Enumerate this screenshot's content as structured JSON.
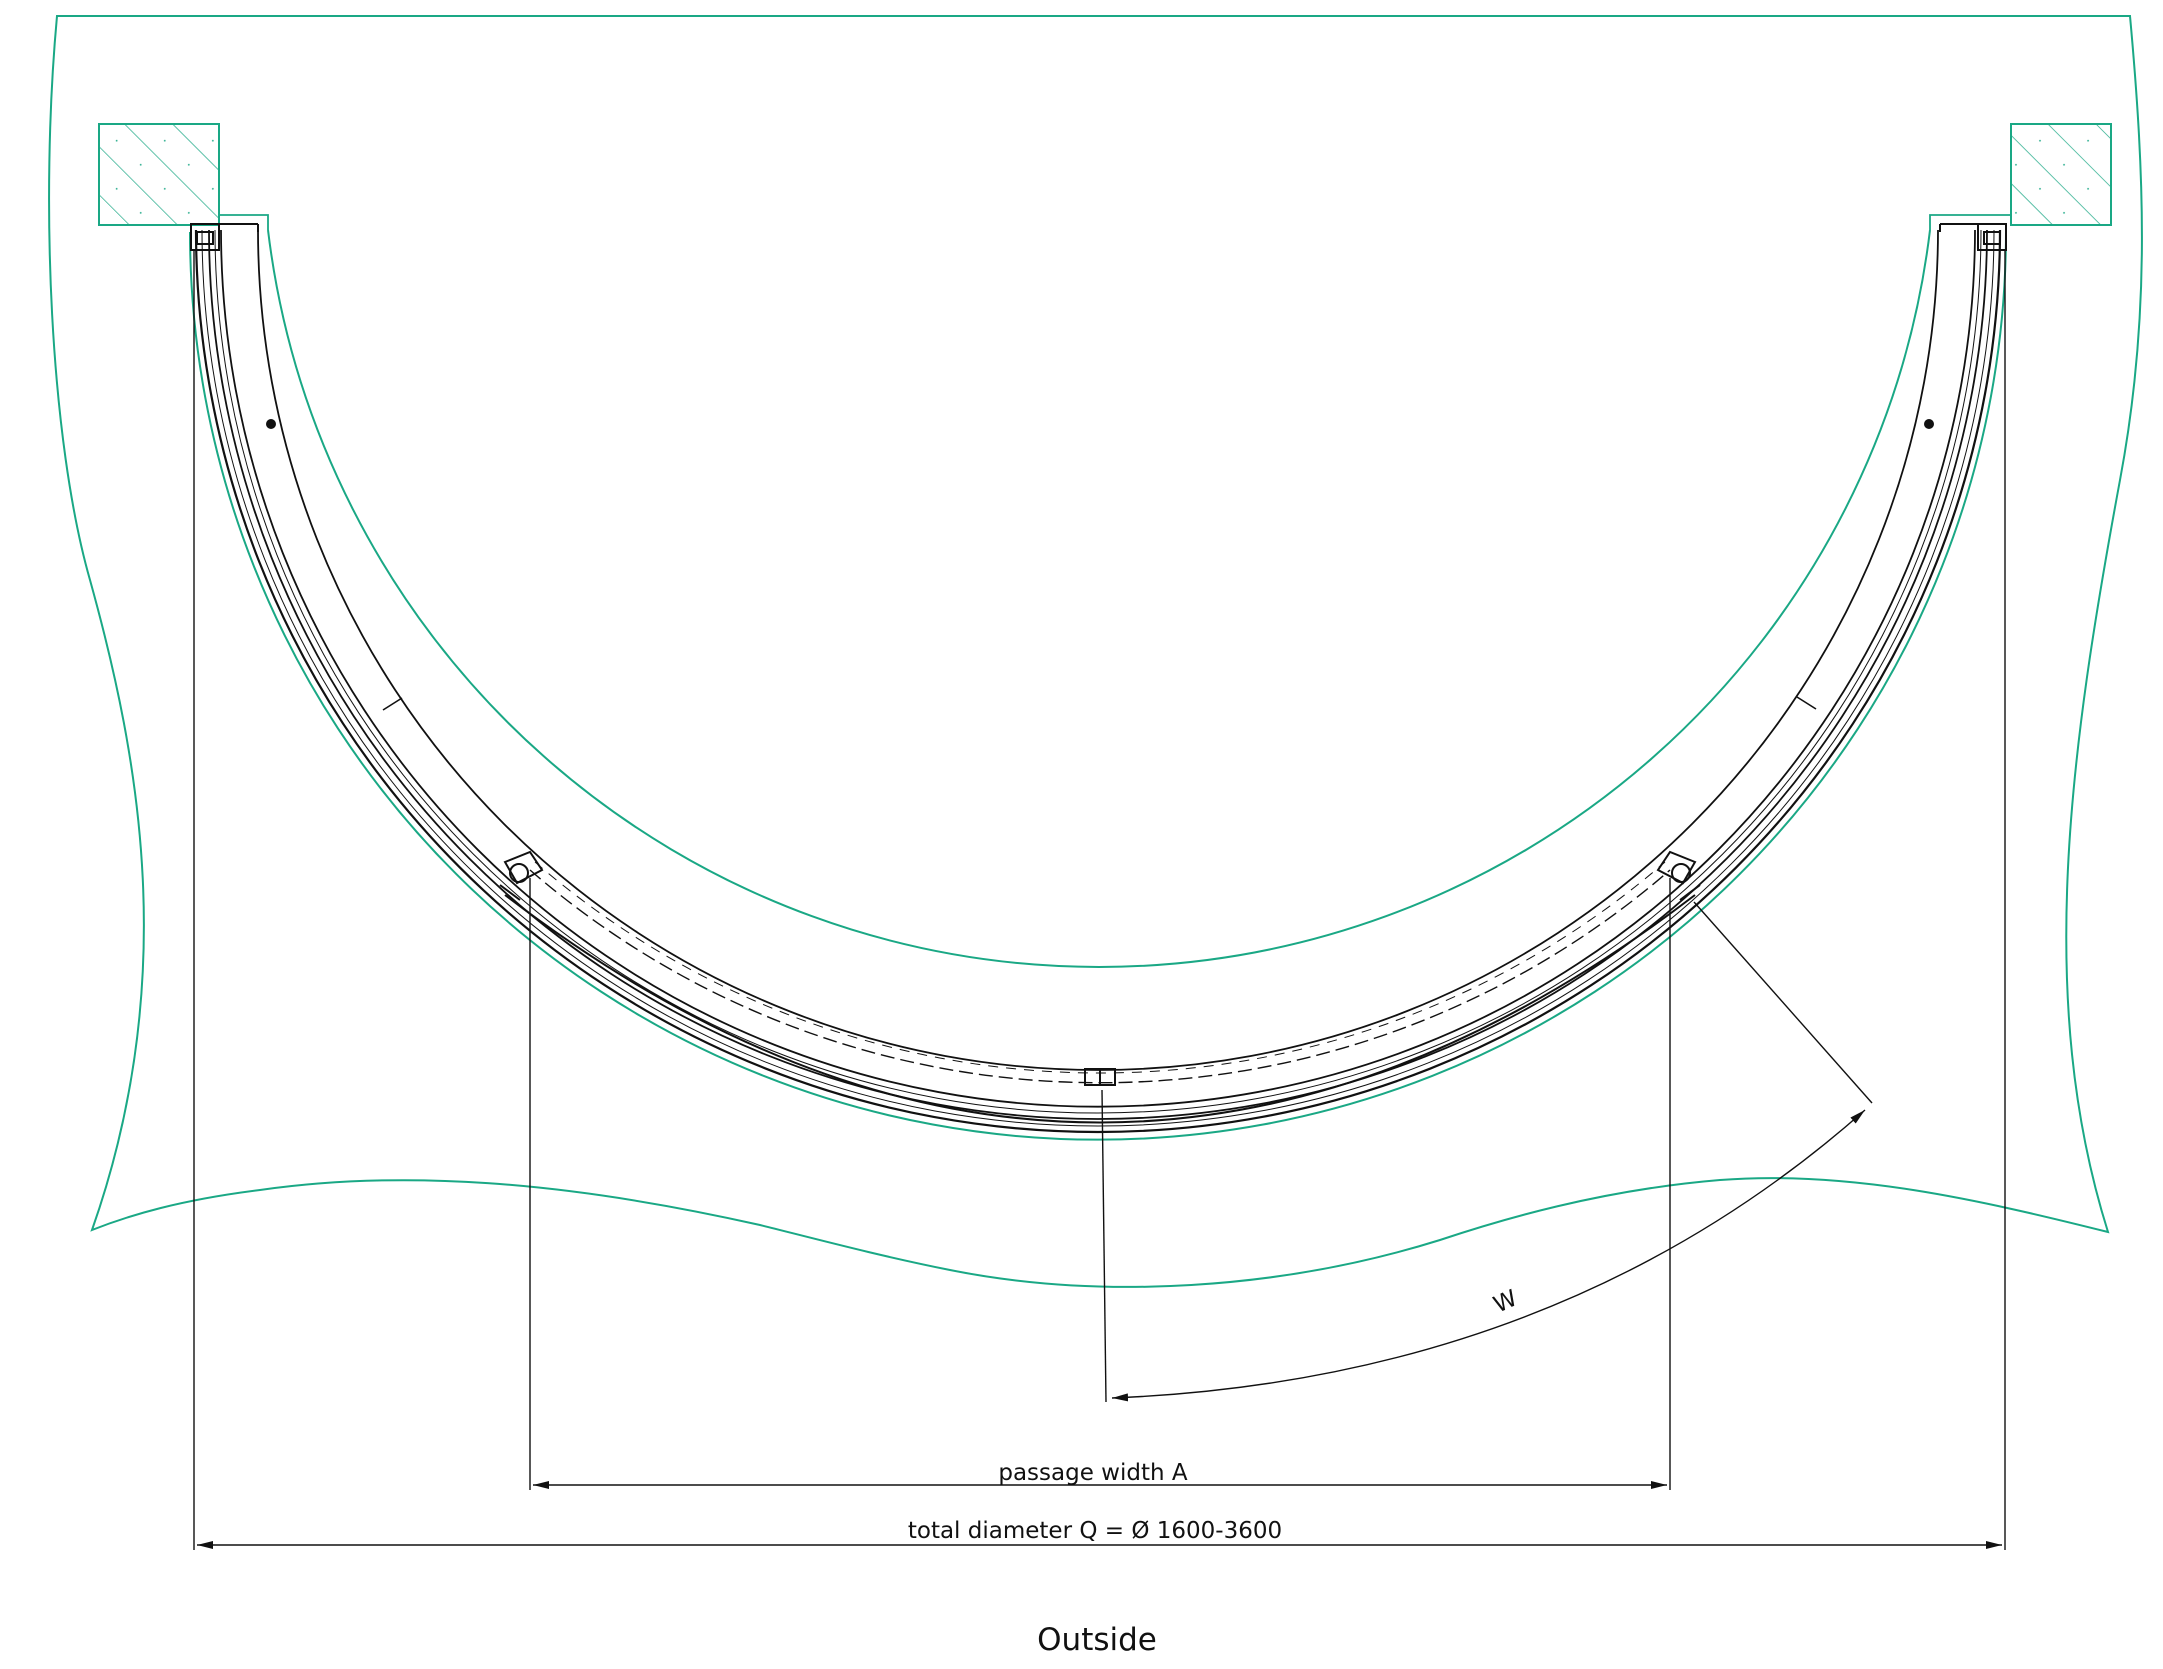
{
  "drawing": {
    "type": "plan-view technical drawing",
    "subject": "curved (semi-circular) sliding door"
  },
  "labels": {
    "arc_dimension": "W",
    "passage_dimension": "passage width A",
    "total_dimension": "total diameter Q =   Ø 1600-3600",
    "side_label": "Outside"
  },
  "colors": {
    "wall_outline": "#1aa885",
    "hatch": "#1aa885",
    "drawing_lines": "#111111",
    "background": "#ffffff"
  }
}
